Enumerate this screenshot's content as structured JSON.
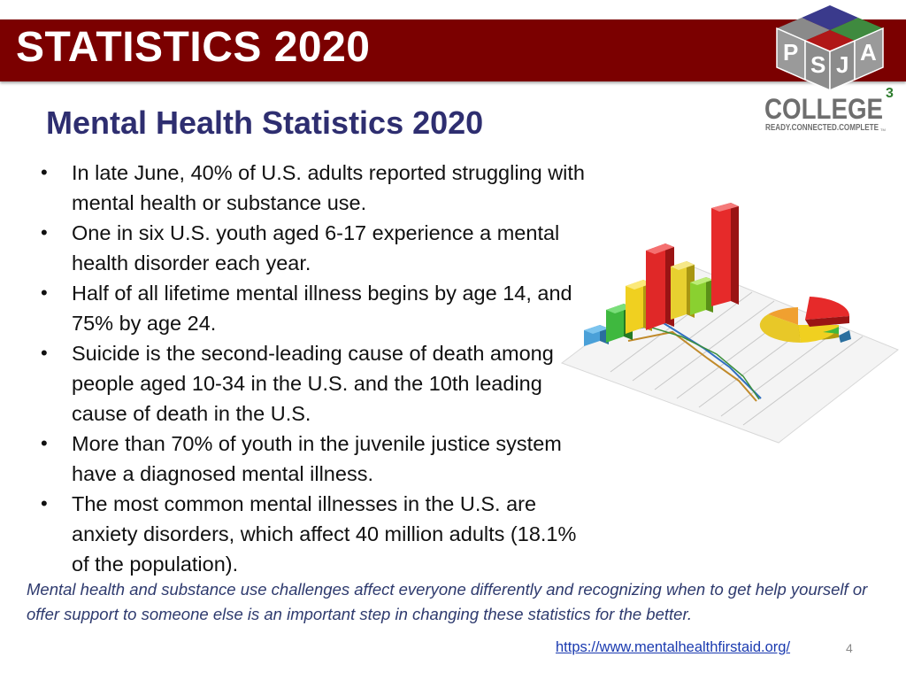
{
  "slide": {
    "title": "STATISTICS 2020",
    "subtitle": "Mental Health Statistics 2020",
    "bullets": [
      "In late June, 40% of U.S. adults reported struggling with mental health or substance use.",
      "One in six U.S. youth aged 6-17 experience a mental health disorder each year.",
      "Half of all lifetime mental illness begins by age 14, and 75% by age 24.",
      "Suicide is the second-leading cause of death among people aged 10-34 in the U.S. and the 10th leading cause of death in the U.S.",
      "More than 70% of youth in the juvenile justice system have a diagnosed mental illness.",
      "The most common mental illnesses in the U.S. are anxiety disorders, which affect 40 million adults (18.1% of the population)."
    ],
    "note": "Mental health and substance use challenges affect everyone differently and recognizing when to get help yourself or offer support to someone else is an important step in changing these statistics for the better.",
    "link": "https://www.mentalhealthfirstaid.org/",
    "page_number": "4"
  },
  "logo": {
    "cube_letters": [
      "P",
      "S",
      "J",
      "A"
    ],
    "wordmark": "COLLEGE",
    "superscript": "3",
    "tagline": "READY.CONNECTED.COMPLETE",
    "tm": "TM"
  },
  "colors": {
    "title_bar": "#7b0000",
    "subtitle": "#2e2e70",
    "note": "#2e3a6e",
    "link": "#1a3ab0"
  }
}
